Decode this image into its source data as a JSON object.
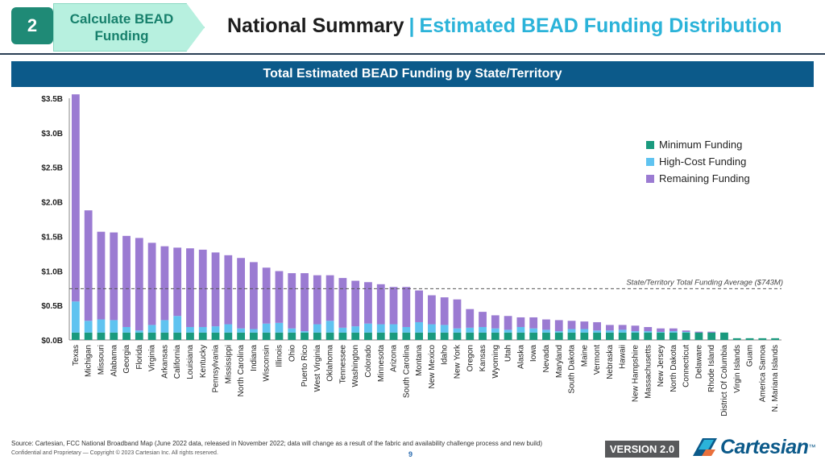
{
  "header": {
    "step_number": "2",
    "step_label": "Calculate BEAD Funding",
    "title_main": "National Summary",
    "title_separator": "|",
    "title_sub": "Estimated BEAD Funding Distribution"
  },
  "colors": {
    "minimum": "#1a9a7e",
    "high_cost": "#5fc3f0",
    "remaining": "#9b7bd2",
    "banner": "#0c5a8a",
    "accent": "#2bb3d9"
  },
  "chart_data": {
    "type": "bar",
    "stacked": true,
    "title": "Total Estimated BEAD Funding by State/Territory",
    "xlabel": "",
    "ylabel": "",
    "ylim": [
      0,
      3.5
    ],
    "y_unit": "billions USD",
    "y_ticks": [
      "$0.0B",
      "$0.5B",
      "$1.0B",
      "$1.5B",
      "$2.0B",
      "$2.5B",
      "$3.0B",
      "$3.5B"
    ],
    "legend_position": "right",
    "categories": [
      "Texas",
      "Michigan",
      "Missouri",
      "Alabama",
      "Georgia",
      "Florida",
      "Virginia",
      "Arkansas",
      "California",
      "Louisiana",
      "Kentucky",
      "Pennsylvania",
      "Mississippi",
      "North Carolina",
      "Indiana",
      "Wisconsin",
      "Illinois",
      "Ohio",
      "Puerto Rico",
      "West Virginia",
      "Oklahoma",
      "Tennessee",
      "Washington",
      "Colorado",
      "Minnesota",
      "Arizona",
      "South Carolina",
      "Montana",
      "New Mexico",
      "Idaho",
      "New York",
      "Oregon",
      "Kansas",
      "Wyoming",
      "Utah",
      "Alaska",
      "Iowa",
      "Nevada",
      "Maryland",
      "South Dakota",
      "Maine",
      "Vermont",
      "Nebraska",
      "Hawaii",
      "New Hampshire",
      "Massachusetts",
      "New Jersey",
      "North Dakota",
      "Connecticut",
      "Delaware",
      "Rhode Island",
      "District Of Columbia",
      "Virgin Islands",
      "Guam",
      "America Samoa",
      "N. Mariana Islands"
    ],
    "series": [
      {
        "name": "Minimum Funding",
        "values": [
          0.107,
          0.107,
          0.107,
          0.107,
          0.107,
          0.107,
          0.107,
          0.107,
          0.107,
          0.107,
          0.107,
          0.107,
          0.107,
          0.107,
          0.107,
          0.107,
          0.107,
          0.107,
          0.107,
          0.107,
          0.107,
          0.107,
          0.107,
          0.107,
          0.107,
          0.107,
          0.107,
          0.107,
          0.107,
          0.107,
          0.107,
          0.107,
          0.107,
          0.107,
          0.107,
          0.107,
          0.107,
          0.107,
          0.107,
          0.107,
          0.107,
          0.107,
          0.107,
          0.107,
          0.107,
          0.107,
          0.107,
          0.107,
          0.107,
          0.107,
          0.107,
          0.107,
          0.025,
          0.025,
          0.025,
          0.025
        ]
      },
      {
        "name": "High-Cost Funding",
        "values": [
          0.45,
          0.17,
          0.19,
          0.18,
          0.08,
          0.03,
          0.11,
          0.18,
          0.24,
          0.08,
          0.08,
          0.09,
          0.12,
          0.06,
          0.05,
          0.13,
          0.14,
          0.06,
          0.02,
          0.12,
          0.17,
          0.07,
          0.09,
          0.13,
          0.12,
          0.12,
          0.08,
          0.15,
          0.12,
          0.11,
          0.06,
          0.07,
          0.08,
          0.06,
          0.04,
          0.08,
          0.06,
          0.04,
          0.02,
          0.05,
          0.05,
          0.03,
          0.03,
          0.04,
          0.02,
          0.02,
          0.01,
          0.02,
          0.01,
          0.0,
          0.0,
          0.0,
          0.0,
          0.0,
          0.0,
          0.0
        ]
      },
      {
        "name": "Remaining Funding",
        "values": [
          3.0,
          1.6,
          1.27,
          1.27,
          1.32,
          1.34,
          1.19,
          1.07,
          0.99,
          1.14,
          1.12,
          1.07,
          1.0,
          1.02,
          0.97,
          0.81,
          0.75,
          0.8,
          0.84,
          0.71,
          0.66,
          0.72,
          0.66,
          0.6,
          0.58,
          0.54,
          0.58,
          0.46,
          0.42,
          0.4,
          0.42,
          0.27,
          0.22,
          0.19,
          0.2,
          0.14,
          0.16,
          0.15,
          0.16,
          0.12,
          0.11,
          0.12,
          0.08,
          0.07,
          0.08,
          0.06,
          0.05,
          0.04,
          0.02,
          0.013,
          0.013,
          0.0,
          0.0,
          0.0,
          0.0,
          0.0
        ]
      }
    ],
    "annotations": [
      {
        "text": "State/Territory Total Funding Average ($743M)",
        "y": 0.743,
        "style": "dashed-line"
      }
    ]
  },
  "footer": {
    "source": "Source: Cartesian, FCC National Broadband Map (June 2022 data, released in November 2022; data will change as a result of the fabric and availability challenge process and new build)",
    "confidential": "Confidential and Proprietary — Copyright © 2023 Cartesian Inc. All rights reserved.",
    "page_number": "9",
    "version": "VERSION 2.0",
    "brand": "Cartesian",
    "brand_tm": "™"
  }
}
